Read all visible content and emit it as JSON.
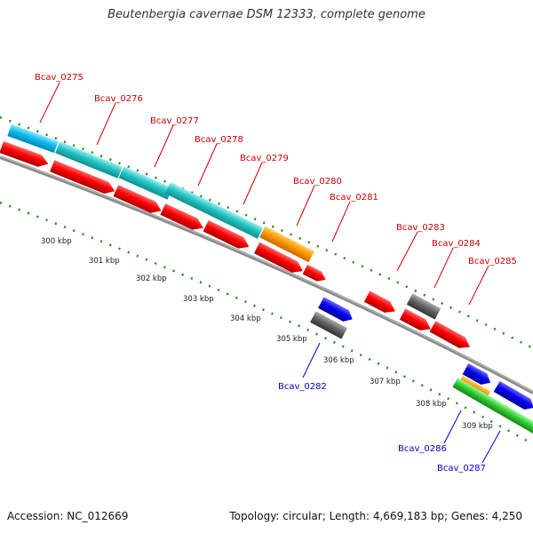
{
  "title": "Beutenbergia cavernae DSM 12333, complete genome",
  "footer": {
    "accession_label": "Accession:",
    "accession": "NC_012669",
    "topology_label": "Topology:",
    "topology": "circular",
    "length_label": "Length:",
    "length": "4,669,183 bp",
    "genes_label": "Genes:",
    "genes": "4,250"
  },
  "ticks": [
    "300 kbp",
    "301 kbp",
    "302 kbp",
    "303 kbp",
    "304 kbp",
    "305 kbp",
    "306 kbp",
    "307 kbp",
    "308 kbp",
    "309 kbp"
  ],
  "colors": {
    "forward_cds": "#ff0000",
    "reverse_cds": "#0000ff",
    "gene_forward": "#00ccff",
    "gene_teal": "#20c8c8",
    "gene_orange": "#ff9900",
    "gene_gray": "#666666",
    "gene_green": "#33cc33",
    "forward_label": "#cc0000",
    "reverse_label": "#0000cc",
    "backbone": "#888888",
    "dots": "#1a8a1a"
  },
  "forward_labels": [
    "Bcav_0275",
    "Bcav_0276",
    "Bcav_0277",
    "Bcav_0278",
    "Bcav_0279",
    "Bcav_0280",
    "Bcav_0281",
    "Bcav_0283",
    "Bcav_0284",
    "Bcav_0285"
  ],
  "reverse_labels": [
    "Bcav_0282",
    "Bcav_0286",
    "Bcav_0287"
  ]
}
